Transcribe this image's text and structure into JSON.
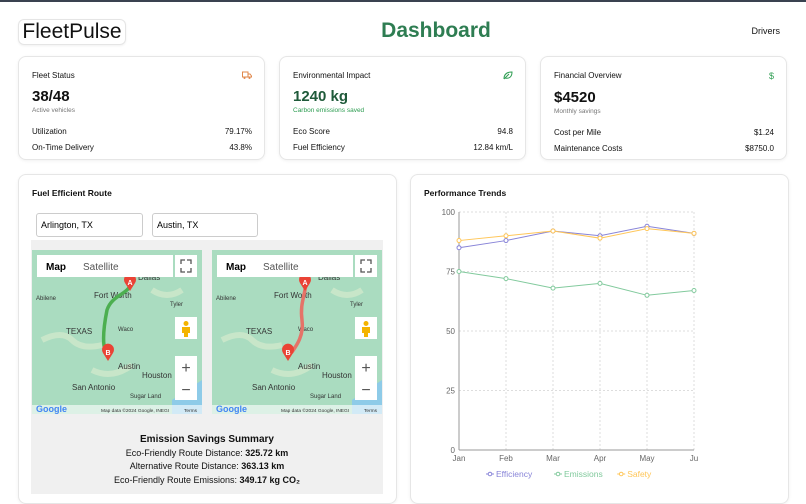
{
  "header": {
    "logo": "FleetPulse",
    "title": "Dashboard",
    "nav_drivers": "Drivers"
  },
  "colors": {
    "accent": "#2e7d52",
    "truck_icon": "#e0874a",
    "efficiency": "#8884d8",
    "emissions": "#82ca9d",
    "safety": "#ffc658"
  },
  "cards": [
    {
      "title": "Fleet Status",
      "icon": "truck-icon",
      "value": "38/48",
      "subtitle": "Active vehicles",
      "rows": [
        {
          "label": "Utilization",
          "value": "79.17%"
        },
        {
          "label": "On-Time Delivery",
          "value": "43.8%"
        }
      ]
    },
    {
      "title": "Environmental Impact",
      "icon": "leaf-icon",
      "value": "1240 kg",
      "subtitle": "Carbon emissions saved",
      "rows": [
        {
          "label": "Eco Score",
          "value": "94.8"
        },
        {
          "label": "Fuel Efficiency",
          "value": "12.84 km/L"
        }
      ]
    },
    {
      "title": "Financial Overview",
      "icon": "dollar-icon",
      "icon_text": "$",
      "value": "$4520",
      "subtitle": "Monthly savings",
      "rows": [
        {
          "label": "Cost per Mile",
          "value": "$1.24"
        },
        {
          "label": "Maintenance Costs",
          "value": "$8750.0"
        }
      ]
    }
  ],
  "route": {
    "title": "Fuel Efficient Route",
    "origin": "Arlington, TX",
    "destination": "Austin, TX",
    "map": {
      "tab_map": "Map",
      "tab_satellite": "Satellite",
      "zoom_in": "+",
      "zoom_out": "−",
      "attribution": "Map data ©2024 Google, INEGI",
      "terms": "Terms",
      "google": "Google",
      "labels": {
        "dallas": "Dallas",
        "fort_worth": "Fort Worth",
        "abilene": "Abilene",
        "tyler": "Tyler",
        "waco": "Waco",
        "texas": "TEXAS",
        "austin": "Austin",
        "san_antonio": "San Antonio",
        "sugar_land": "Sugar Land",
        "houston": "Houston",
        "marker_a": "A",
        "marker_b": "B"
      },
      "route_colors": [
        "#4caf50",
        "#e57368"
      ]
    },
    "summary": {
      "title": "Emission Savings Summary",
      "lines": [
        {
          "label": "Eco-Friendly Route Distance: ",
          "value": "325.72 km"
        },
        {
          "label": "Alternative Route Distance: ",
          "value": "363.13 km"
        },
        {
          "label": "Eco-Friendly Route Emissions: ",
          "value": "349.17 kg CO₂"
        }
      ]
    }
  },
  "chart_data": {
    "type": "line",
    "title": "Performance Trends",
    "categories": [
      "Jan",
      "Feb",
      "Mar",
      "Apr",
      "May",
      "Ju"
    ],
    "ylim": [
      0,
      100
    ],
    "yticks": [
      0,
      25,
      50,
      75,
      100
    ],
    "grid": true,
    "legend": "bottom",
    "series": [
      {
        "name": "Efficiency",
        "color": "#8884d8",
        "values": [
          85,
          88,
          92,
          90,
          94,
          91
        ]
      },
      {
        "name": "Emissions",
        "color": "#82ca9d",
        "values": [
          75,
          72,
          68,
          70,
          65,
          67
        ]
      },
      {
        "name": "Safety",
        "color": "#ffc658",
        "values": [
          88,
          90,
          92,
          89,
          93,
          91
        ]
      }
    ]
  }
}
